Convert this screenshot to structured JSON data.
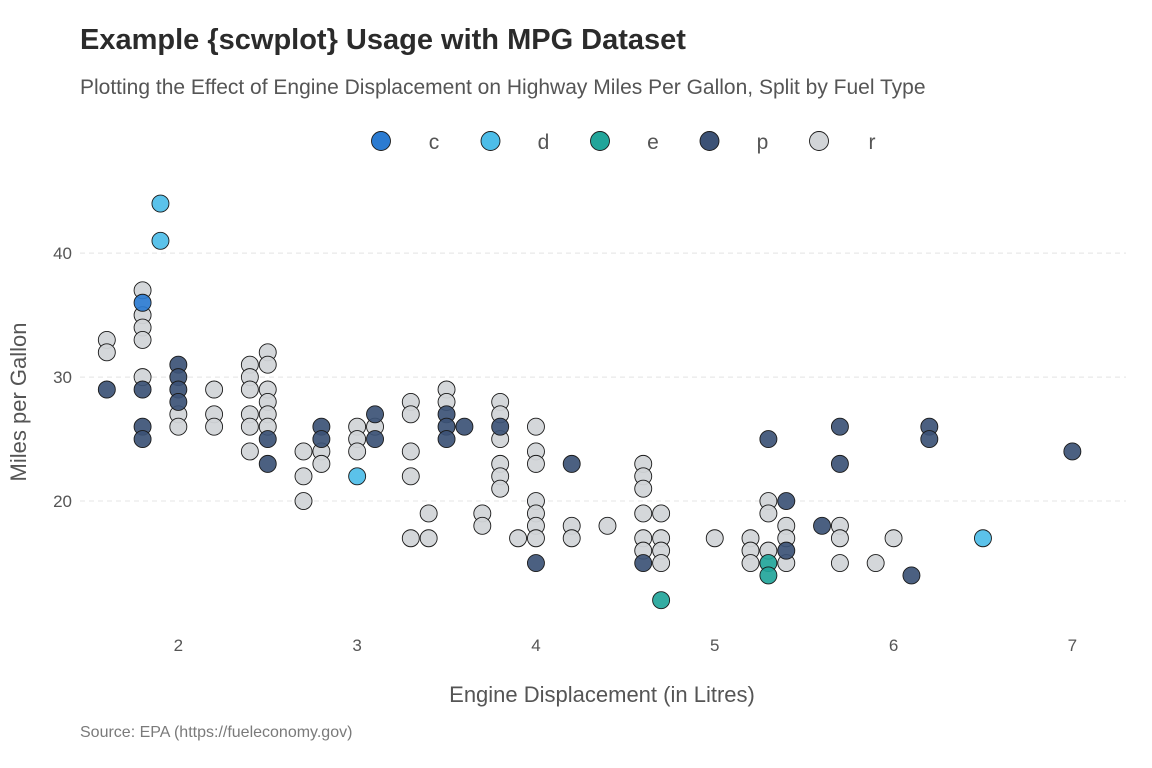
{
  "title": "Example {scwplot} Usage with MPG Dataset",
  "subtitle": "Plotting the Effect of Engine Displacement on Highway Miles Per Gallon, Split by Fuel Type",
  "caption": "Source: EPA (https://fueleconomy.gov)",
  "chart_data": {
    "type": "scatter",
    "xlabel": "Engine Displacement (in Litres)",
    "ylabel": "Miles per Gallon",
    "xlim": [
      1.45,
      7.3
    ],
    "ylim": [
      10,
      45.5
    ],
    "xticks": [
      2,
      3,
      4,
      5,
      6,
      7
    ],
    "yticks": [
      20,
      30,
      40
    ],
    "grid": "horizontal dashed at y ticks",
    "legend_position": "top",
    "colors": {
      "c": "#2b7bd1",
      "d": "#4dbde8",
      "e": "#22a59a",
      "p": "#3c5276",
      "r": "#d2d5d8"
    },
    "series": [
      {
        "name": "c",
        "points": [
          [
            1.8,
            36
          ]
        ]
      },
      {
        "name": "d",
        "points": [
          [
            1.9,
            44
          ],
          [
            1.9,
            41
          ],
          [
            3.0,
            22
          ],
          [
            6.5,
            17
          ]
        ]
      },
      {
        "name": "e",
        "points": [
          [
            4.7,
            12
          ],
          [
            5.3,
            15
          ],
          [
            5.3,
            14
          ]
        ]
      },
      {
        "name": "p",
        "points": [
          [
            1.6,
            29
          ],
          [
            1.8,
            29
          ],
          [
            1.8,
            26
          ],
          [
            1.8,
            25
          ],
          [
            2.0,
            31
          ],
          [
            2.0,
            30
          ],
          [
            2.0,
            29
          ],
          [
            2.0,
            28
          ],
          [
            2.5,
            25
          ],
          [
            2.5,
            23
          ],
          [
            2.8,
            26
          ],
          [
            2.8,
            25
          ],
          [
            3.1,
            27
          ],
          [
            3.1,
            25
          ],
          [
            3.5,
            27
          ],
          [
            3.5,
            26
          ],
          [
            3.5,
            25
          ],
          [
            3.6,
            26
          ],
          [
            3.8,
            26
          ],
          [
            4.0,
            15
          ],
          [
            4.2,
            23
          ],
          [
            4.6,
            15
          ],
          [
            5.3,
            25
          ],
          [
            5.4,
            20
          ],
          [
            5.4,
            16
          ],
          [
            5.6,
            18
          ],
          [
            5.7,
            26
          ],
          [
            5.7,
            23
          ],
          [
            6.1,
            14
          ],
          [
            6.2,
            26
          ],
          [
            6.2,
            25
          ],
          [
            7.0,
            24
          ]
        ]
      },
      {
        "name": "r",
        "points": [
          [
            1.6,
            33
          ],
          [
            1.6,
            32
          ],
          [
            1.8,
            37
          ],
          [
            1.8,
            35
          ],
          [
            1.8,
            34
          ],
          [
            1.8,
            33
          ],
          [
            1.8,
            30
          ],
          [
            2.0,
            27
          ],
          [
            2.0,
            26
          ],
          [
            2.2,
            29
          ],
          [
            2.2,
            27
          ],
          [
            2.2,
            26
          ],
          [
            2.4,
            31
          ],
          [
            2.4,
            30
          ],
          [
            2.4,
            29
          ],
          [
            2.4,
            27
          ],
          [
            2.4,
            26
          ],
          [
            2.4,
            24
          ],
          [
            2.5,
            32
          ],
          [
            2.5,
            31
          ],
          [
            2.5,
            29
          ],
          [
            2.5,
            28
          ],
          [
            2.5,
            27
          ],
          [
            2.5,
            26
          ],
          [
            2.7,
            24
          ],
          [
            2.7,
            22
          ],
          [
            2.7,
            20
          ],
          [
            2.8,
            24
          ],
          [
            2.8,
            23
          ],
          [
            3.0,
            26
          ],
          [
            3.0,
            25
          ],
          [
            3.0,
            24
          ],
          [
            3.1,
            26
          ],
          [
            3.3,
            28
          ],
          [
            3.3,
            27
          ],
          [
            3.3,
            24
          ],
          [
            3.3,
            22
          ],
          [
            3.3,
            17
          ],
          [
            3.4,
            19
          ],
          [
            3.4,
            17
          ],
          [
            3.5,
            29
          ],
          [
            3.5,
            28
          ],
          [
            3.7,
            19
          ],
          [
            3.7,
            18
          ],
          [
            3.8,
            28
          ],
          [
            3.8,
            27
          ],
          [
            3.8,
            25
          ],
          [
            3.8,
            23
          ],
          [
            3.8,
            22
          ],
          [
            3.8,
            21
          ],
          [
            3.9,
            17
          ],
          [
            4.0,
            26
          ],
          [
            4.0,
            24
          ],
          [
            4.0,
            23
          ],
          [
            4.0,
            20
          ],
          [
            4.0,
            19
          ],
          [
            4.0,
            18
          ],
          [
            4.0,
            17
          ],
          [
            4.2,
            18
          ],
          [
            4.2,
            17
          ],
          [
            4.4,
            18
          ],
          [
            4.6,
            23
          ],
          [
            4.6,
            22
          ],
          [
            4.6,
            21
          ],
          [
            4.6,
            19
          ],
          [
            4.6,
            17
          ],
          [
            4.6,
            16
          ],
          [
            4.7,
            19
          ],
          [
            4.7,
            17
          ],
          [
            4.7,
            16
          ],
          [
            4.7,
            15
          ],
          [
            5.0,
            17
          ],
          [
            5.2,
            17
          ],
          [
            5.2,
            16
          ],
          [
            5.2,
            15
          ],
          [
            5.3,
            20
          ],
          [
            5.3,
            19
          ],
          [
            5.3,
            16
          ],
          [
            5.4,
            18
          ],
          [
            5.4,
            17
          ],
          [
            5.4,
            15
          ],
          [
            5.7,
            18
          ],
          [
            5.7,
            17
          ],
          [
            5.7,
            15
          ],
          [
            5.9,
            15
          ],
          [
            6.0,
            17
          ]
        ]
      }
    ]
  }
}
